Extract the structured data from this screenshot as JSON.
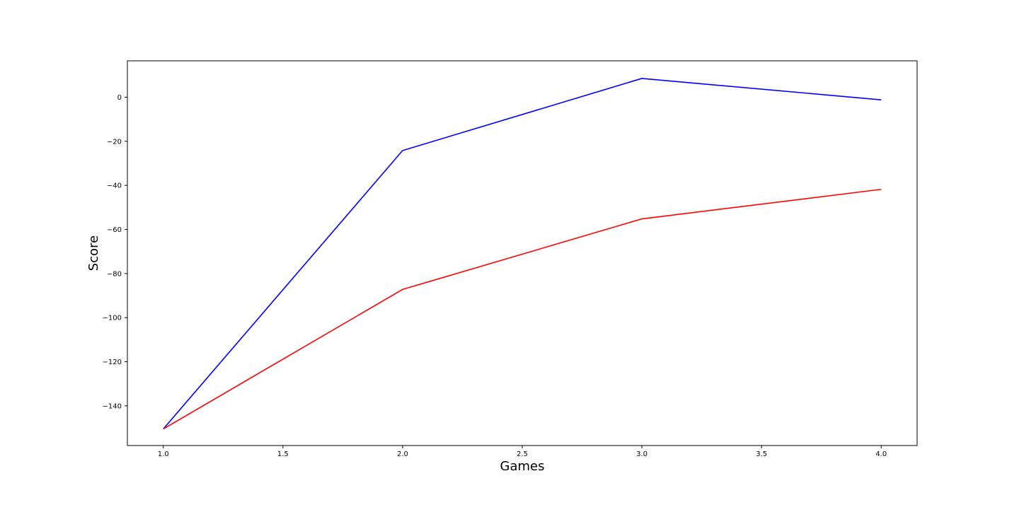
{
  "chart_data": {
    "type": "line",
    "title": "",
    "xlabel": "Games",
    "ylabel": "Score",
    "x": [
      1.0,
      2.0,
      3.0,
      4.0
    ],
    "xlim": [
      0.85,
      4.15
    ],
    "ylim": [
      -158,
      16.5
    ],
    "xticks": [
      1.0,
      1.5,
      2.0,
      2.5,
      3.0,
      3.5,
      4.0
    ],
    "xtick_labels": [
      "1.0",
      "1.5",
      "2.0",
      "2.5",
      "3.0",
      "3.5",
      "4.0"
    ],
    "yticks": [
      0,
      -20,
      -40,
      -60,
      -80,
      -100,
      -120,
      -140
    ],
    "ytick_labels": [
      "0",
      "−20",
      "−40",
      "−60",
      "−80",
      "−100",
      "−120",
      "−140"
    ],
    "grid": false,
    "series": [
      {
        "color": "#0000ff",
        "values": [
          -150.5,
          -24.2,
          8.5,
          -1.2
        ]
      },
      {
        "color": "#ff0000",
        "values": [
          -150.5,
          -87.2,
          -55.2,
          -41.8
        ]
      }
    ]
  }
}
